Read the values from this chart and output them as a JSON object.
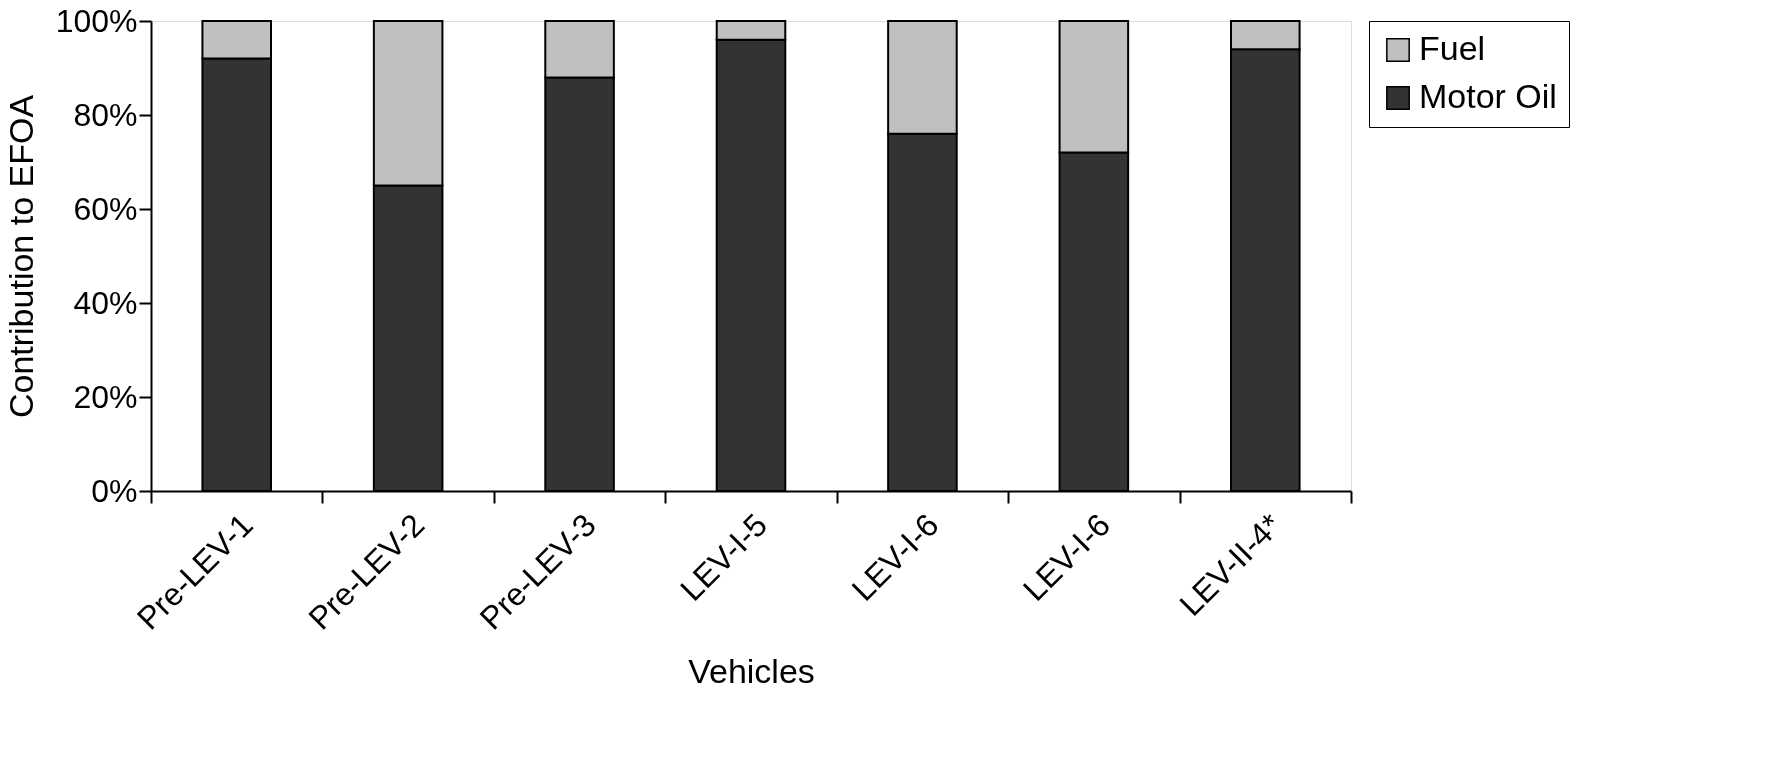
{
  "chart_data": {
    "type": "bar",
    "stacked": true,
    "xlabel": "Vehicles",
    "ylabel": "Contribution to EFOA",
    "categories": [
      "Pre-LEV-1",
      "Pre-LEV-2",
      "Pre-LEV-3",
      "LEV-I-5",
      "LEV-I-6",
      "LEV-I-6",
      "LEV-II-4*"
    ],
    "series": [
      {
        "name": "Motor Oil",
        "color": "#333333",
        "values": [
          92,
          65,
          88,
          96,
          76,
          72,
          94
        ]
      },
      {
        "name": "Fuel",
        "color": "#c0c0c0",
        "values": [
          8,
          35,
          12,
          4,
          24,
          28,
          6
        ]
      }
    ],
    "ylim": [
      0,
      100
    ],
    "yticks": [
      {
        "value": 0,
        "label": "0%"
      },
      {
        "value": 20,
        "label": "20%"
      },
      {
        "value": 40,
        "label": "40%"
      },
      {
        "value": 60,
        "label": "60%"
      },
      {
        "value": 80,
        "label": "80%"
      },
      {
        "value": 100,
        "label": "100%"
      }
    ],
    "grid": false,
    "legend": "right"
  }
}
